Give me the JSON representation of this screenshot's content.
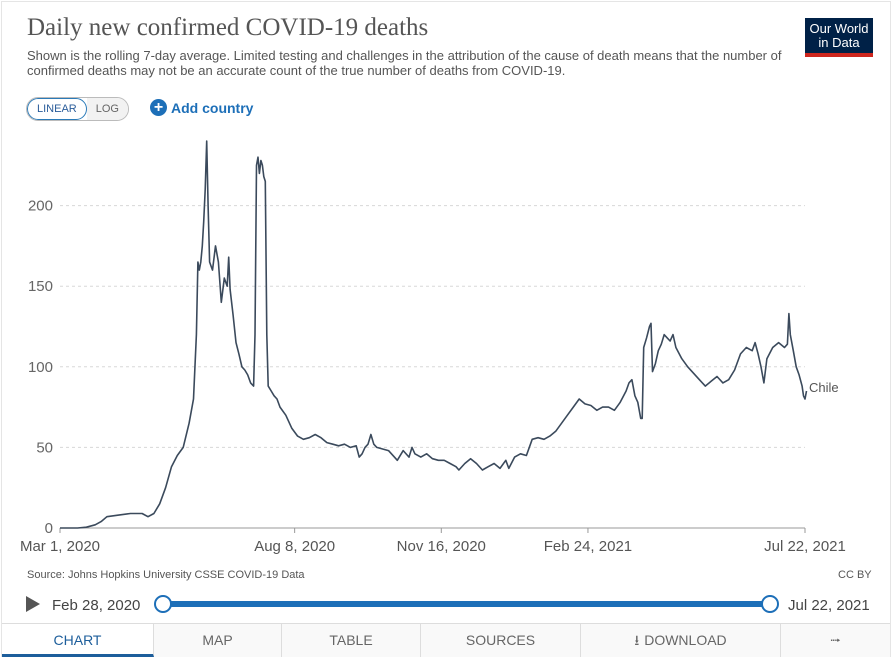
{
  "header": {
    "title": "Daily new confirmed COVID-19 deaths",
    "subtitle": "Shown is the rolling 7-day average. Limited testing and challenges in the attribution of the cause of death means that the number of confirmed deaths may not be an accurate count of the true number of deaths from COVID-19.",
    "logo_line1": "Our World",
    "logo_line2": "in Data"
  },
  "controls": {
    "linear_label": "LINEAR",
    "log_label": "LOG",
    "add_country_label": "Add country"
  },
  "footer": {
    "source": "Source: Johns Hopkins University CSSE COVID-19 Data",
    "license": "CC BY"
  },
  "timeline": {
    "start_label": "Feb 28, 2020",
    "end_label": "Jul 22, 2021"
  },
  "tabs": {
    "chart": "CHART",
    "map": "MAP",
    "table": "TABLE",
    "sources": "SOURCES",
    "download": "DOWNLOAD"
  },
  "colors": {
    "line": "#3b4a5c",
    "accent": "#1d6fb8",
    "logo_bg": "#002147",
    "logo_bar": "#ce261e"
  },
  "chart_data": {
    "type": "line",
    "title": "Daily new confirmed COVID-19 deaths",
    "xlabel": "",
    "ylabel": "",
    "ylim": [
      0,
      250
    ],
    "yticks": [
      0,
      50,
      100,
      150,
      200
    ],
    "x_range_days": [
      0,
      508
    ],
    "xticks": [
      {
        "label": "Mar 1, 2020",
        "day": 0
      },
      {
        "label": "Aug 8, 2020",
        "day": 160
      },
      {
        "label": "Nov 16, 2020",
        "day": 260
      },
      {
        "label": "Feb 24, 2021",
        "day": 360
      },
      {
        "label": "Jul 22, 2021",
        "day": 508
      }
    ],
    "grid": true,
    "series": [
      {
        "name": "Chile",
        "x_unit": "days since Mar 1, 2020",
        "points": [
          [
            0,
            0
          ],
          [
            12,
            0
          ],
          [
            18,
            0.5
          ],
          [
            24,
            2
          ],
          [
            28,
            4
          ],
          [
            32,
            7
          ],
          [
            40,
            8
          ],
          [
            48,
            9
          ],
          [
            56,
            9
          ],
          [
            60,
            7
          ],
          [
            64,
            9
          ],
          [
            68,
            15
          ],
          [
            72,
            25
          ],
          [
            76,
            38
          ],
          [
            80,
            45
          ],
          [
            84,
            50
          ],
          [
            88,
            65
          ],
          [
            91,
            80
          ],
          [
            93,
            120
          ],
          [
            94,
            165
          ],
          [
            95,
            160
          ],
          [
            96,
            165
          ],
          [
            97,
            175
          ],
          [
            98,
            190
          ],
          [
            99,
            210
          ],
          [
            100,
            240
          ],
          [
            101,
            200
          ],
          [
            102,
            165
          ],
          [
            104,
            160
          ],
          [
            106,
            175
          ],
          [
            108,
            165
          ],
          [
            110,
            140
          ],
          [
            112,
            155
          ],
          [
            114,
            150
          ],
          [
            115,
            168
          ],
          [
            116,
            148
          ],
          [
            118,
            132
          ],
          [
            120,
            115
          ],
          [
            122,
            108
          ],
          [
            124,
            100
          ],
          [
            126,
            98
          ],
          [
            128,
            95
          ],
          [
            130,
            90
          ],
          [
            132,
            88
          ],
          [
            133,
            120
          ],
          [
            134,
            225
          ],
          [
            135,
            230
          ],
          [
            136,
            220
          ],
          [
            137,
            228
          ],
          [
            138,
            225
          ],
          [
            139,
            218
          ],
          [
            140,
            215
          ],
          [
            141,
            120
          ],
          [
            142,
            88
          ],
          [
            144,
            85
          ],
          [
            146,
            82
          ],
          [
            148,
            80
          ],
          [
            150,
            75
          ],
          [
            154,
            70
          ],
          [
            158,
            62
          ],
          [
            162,
            57
          ],
          [
            166,
            55
          ],
          [
            170,
            56
          ],
          [
            174,
            58
          ],
          [
            178,
            56
          ],
          [
            182,
            53
          ],
          [
            186,
            52
          ],
          [
            190,
            51
          ],
          [
            194,
            52
          ],
          [
            198,
            50
          ],
          [
            202,
            51
          ],
          [
            204,
            44
          ],
          [
            206,
            46
          ],
          [
            208,
            50
          ],
          [
            210,
            52
          ],
          [
            212,
            58
          ],
          [
            214,
            52
          ],
          [
            216,
            50
          ],
          [
            220,
            49
          ],
          [
            224,
            48
          ],
          [
            228,
            44
          ],
          [
            230,
            42
          ],
          [
            234,
            48
          ],
          [
            238,
            44
          ],
          [
            240,
            50
          ],
          [
            242,
            46
          ],
          [
            246,
            44
          ],
          [
            250,
            46
          ],
          [
            254,
            43
          ],
          [
            258,
            42
          ],
          [
            262,
            42
          ],
          [
            266,
            40
          ],
          [
            270,
            38
          ],
          [
            272,
            36
          ],
          [
            276,
            40
          ],
          [
            280,
            43
          ],
          [
            284,
            40
          ],
          [
            288,
            36
          ],
          [
            292,
            38
          ],
          [
            296,
            40
          ],
          [
            300,
            37
          ],
          [
            304,
            42
          ],
          [
            306,
            37
          ],
          [
            310,
            44
          ],
          [
            314,
            46
          ],
          [
            318,
            45
          ],
          [
            322,
            55
          ],
          [
            326,
            56
          ],
          [
            330,
            55
          ],
          [
            334,
            57
          ],
          [
            338,
            60
          ],
          [
            342,
            65
          ],
          [
            346,
            70
          ],
          [
            350,
            75
          ],
          [
            354,
            80
          ],
          [
            358,
            77
          ],
          [
            362,
            76
          ],
          [
            366,
            73
          ],
          [
            370,
            75
          ],
          [
            374,
            75
          ],
          [
            378,
            73
          ],
          [
            382,
            78
          ],
          [
            386,
            85
          ],
          [
            388,
            90
          ],
          [
            390,
            92
          ],
          [
            392,
            82
          ],
          [
            394,
            78
          ],
          [
            396,
            68
          ],
          [
            397,
            68
          ],
          [
            398,
            112
          ],
          [
            400,
            118
          ],
          [
            402,
            125
          ],
          [
            403,
            127
          ],
          [
            404,
            97
          ],
          [
            406,
            102
          ],
          [
            408,
            110
          ],
          [
            410,
            114
          ],
          [
            412,
            120
          ],
          [
            414,
            118
          ],
          [
            416,
            116
          ],
          [
            418,
            120
          ],
          [
            420,
            112
          ],
          [
            424,
            105
          ],
          [
            428,
            100
          ],
          [
            432,
            96
          ],
          [
            436,
            92
          ],
          [
            440,
            88
          ],
          [
            444,
            91
          ],
          [
            448,
            94
          ],
          [
            452,
            90
          ],
          [
            456,
            92
          ],
          [
            460,
            98
          ],
          [
            464,
            108
          ],
          [
            468,
            112
          ],
          [
            472,
            110
          ],
          [
            474,
            115
          ],
          [
            476,
            108
          ],
          [
            478,
            100
          ],
          [
            480,
            90
          ],
          [
            482,
            105
          ],
          [
            486,
            112
          ],
          [
            490,
            115
          ],
          [
            494,
            112
          ],
          [
            496,
            114
          ],
          [
            497,
            133
          ],
          [
            498,
            120
          ],
          [
            500,
            110
          ],
          [
            502,
            100
          ],
          [
            504,
            95
          ],
          [
            506,
            88
          ],
          [
            507,
            82
          ],
          [
            508,
            80
          ],
          [
            509,
            85
          ]
        ]
      }
    ]
  }
}
